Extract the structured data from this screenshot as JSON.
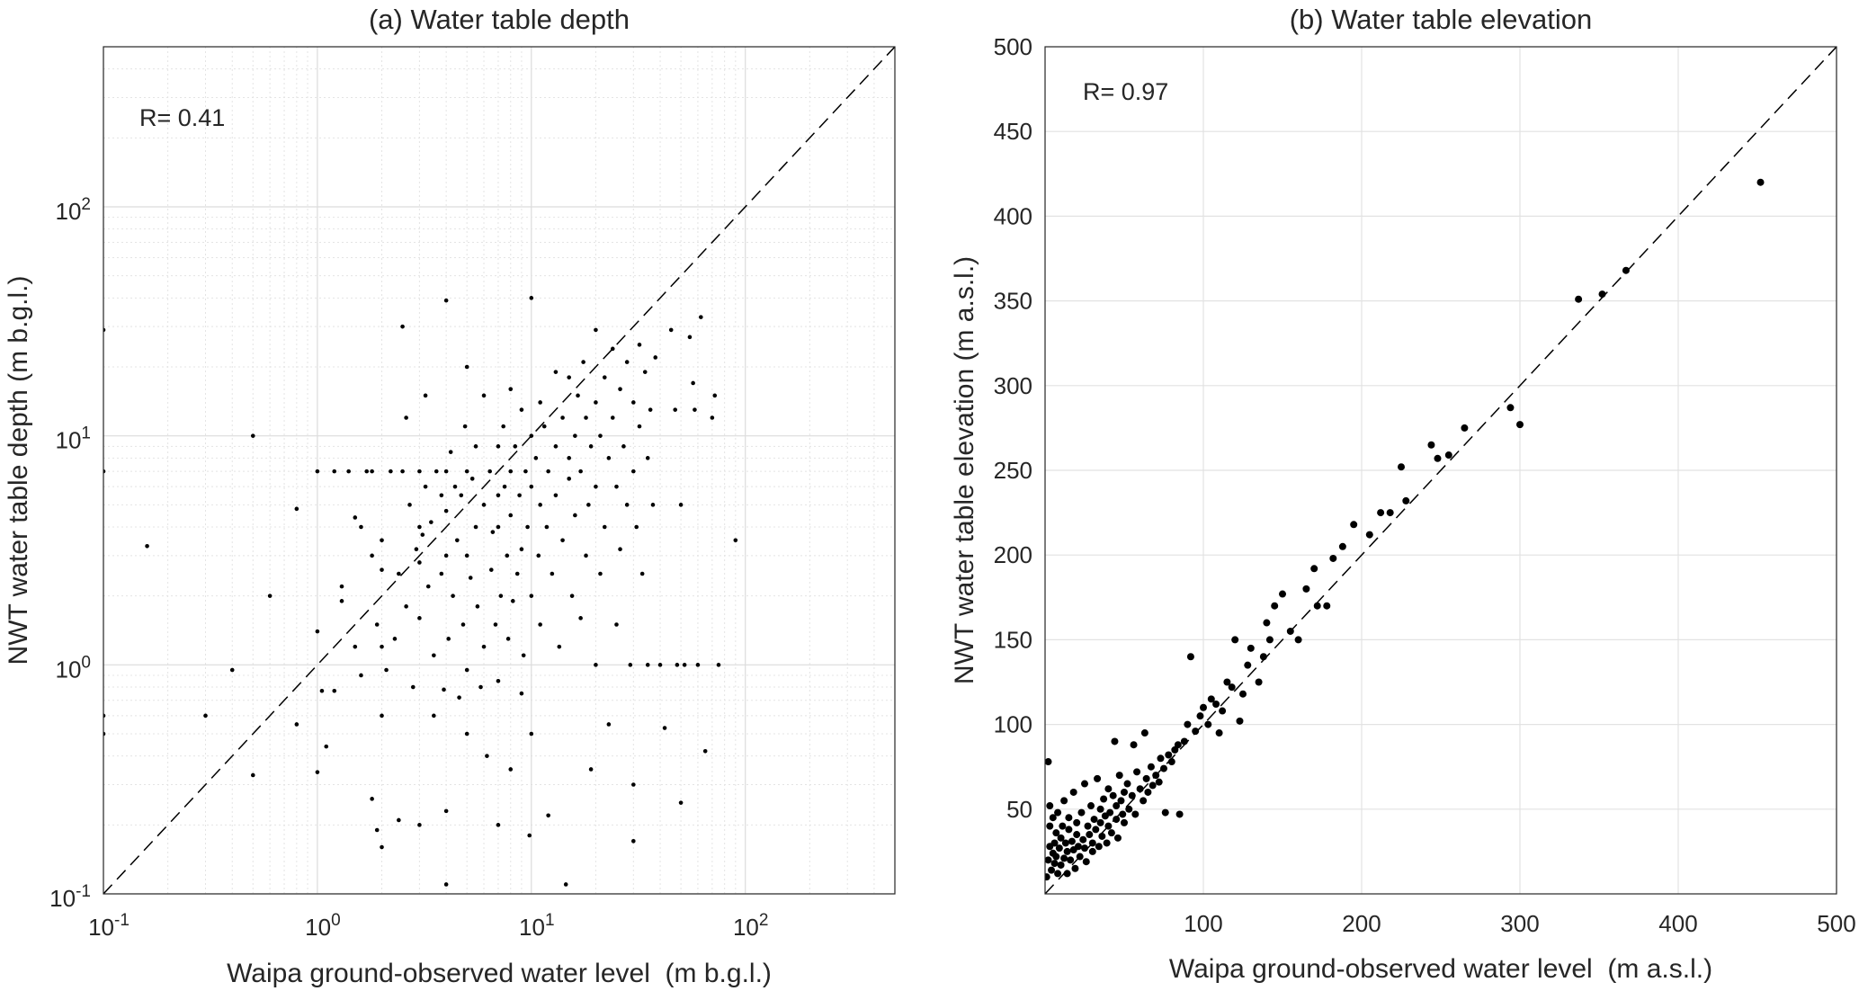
{
  "chart_data": [
    {
      "type": "scatter",
      "title": "(a) Water table depth",
      "xlabel": "Waipa ground-observed water level  (m b.g.l.)",
      "ylabel": "NWT water table depth (m b.g.l.)",
      "xscale": "log",
      "yscale": "log",
      "xlim": [
        0.1,
        500
      ],
      "ylim": [
        0.1,
        500
      ],
      "x_ticks": [
        {
          "base": "10",
          "exp": "-1"
        },
        {
          "base": "10",
          "exp": "0"
        },
        {
          "base": "10",
          "exp": "1"
        },
        {
          "base": "10",
          "exp": "2"
        }
      ],
      "y_ticks": [
        {
          "base": "10",
          "exp": "-1"
        },
        {
          "base": "10",
          "exp": "0"
        },
        {
          "base": "10",
          "exp": "1"
        },
        {
          "base": "10",
          "exp": "2"
        }
      ],
      "grid": "major and minor",
      "reference_line": "1:1 dashed",
      "annotation": "R= 0.41",
      "points": [
        [
          0.1,
          29
        ],
        [
          0.1,
          7
        ],
        [
          0.1,
          0.6
        ],
        [
          0.1,
          0.5
        ],
        [
          0.16,
          3.3
        ],
        [
          0.3,
          0.6
        ],
        [
          0.4,
          0.95
        ],
        [
          0.5,
          10
        ],
        [
          0.5,
          0.33
        ],
        [
          0.6,
          2
        ],
        [
          0.8,
          4.8
        ],
        [
          0.8,
          0.55
        ],
        [
          1,
          7
        ],
        [
          1,
          1.4
        ],
        [
          1,
          0.34
        ],
        [
          1.05,
          0.77
        ],
        [
          1.1,
          0.44
        ],
        [
          1.2,
          7
        ],
        [
          1.2,
          0.77
        ],
        [
          1.3,
          2.2
        ],
        [
          1.3,
          1.9
        ],
        [
          1.4,
          7
        ],
        [
          1.5,
          4.4
        ],
        [
          1.5,
          1.2
        ],
        [
          1.6,
          4
        ],
        [
          1.6,
          0.9
        ],
        [
          1.7,
          7
        ],
        [
          1.8,
          7
        ],
        [
          1.8,
          3
        ],
        [
          1.8,
          0.26
        ],
        [
          1.9,
          1.5
        ],
        [
          1.9,
          0.19
        ],
        [
          2,
          3.5
        ],
        [
          2,
          2.6
        ],
        [
          2,
          1.2
        ],
        [
          2,
          0.6
        ],
        [
          2,
          0.16
        ],
        [
          2.1,
          0.95
        ],
        [
          2.2,
          7
        ],
        [
          2.3,
          1.3
        ],
        [
          2.4,
          2.5
        ],
        [
          2.4,
          0.21
        ],
        [
          2.5,
          30
        ],
        [
          2.5,
          7
        ],
        [
          2.6,
          1.8
        ],
        [
          2.6,
          12
        ],
        [
          2.7,
          5
        ],
        [
          2.8,
          0.8
        ],
        [
          2.9,
          3.2
        ],
        [
          3,
          7
        ],
        [
          3,
          4
        ],
        [
          3,
          2.8
        ],
        [
          3,
          1.6
        ],
        [
          3,
          0.2
        ],
        [
          3.1,
          3.7
        ],
        [
          3.2,
          15
        ],
        [
          3.2,
          6
        ],
        [
          3.3,
          2.2
        ],
        [
          3.4,
          4.2
        ],
        [
          3.5,
          1.1
        ],
        [
          3.5,
          0.6
        ],
        [
          3.6,
          7
        ],
        [
          3.8,
          5.5
        ],
        [
          3.8,
          2.5
        ],
        [
          3.9,
          0.78
        ],
        [
          4,
          39
        ],
        [
          4,
          7
        ],
        [
          4,
          4.7
        ],
        [
          4,
          3
        ],
        [
          4,
          0.23
        ],
        [
          4,
          0.11
        ],
        [
          4.1,
          1.3
        ],
        [
          4.2,
          8.5
        ],
        [
          4.3,
          2
        ],
        [
          4.4,
          6
        ],
        [
          4.5,
          3.5
        ],
        [
          4.6,
          0.72
        ],
        [
          4.7,
          5.5
        ],
        [
          4.8,
          1.5
        ],
        [
          4.9,
          11
        ],
        [
          5,
          20
        ],
        [
          5,
          7
        ],
        [
          5,
          3
        ],
        [
          5,
          0.95
        ],
        [
          5,
          0.5
        ],
        [
          5.2,
          2.4
        ],
        [
          5.3,
          6.5
        ],
        [
          5.5,
          9
        ],
        [
          5.5,
          4
        ],
        [
          5.6,
          1.8
        ],
        [
          5.8,
          0.8
        ],
        [
          6,
          15
        ],
        [
          6,
          5
        ],
        [
          6,
          1.2
        ],
        [
          6.2,
          0.4
        ],
        [
          6.4,
          7
        ],
        [
          6.5,
          2.6
        ],
        [
          6.6,
          3.8
        ],
        [
          6.8,
          1.5
        ],
        [
          7,
          9
        ],
        [
          7,
          5.5
        ],
        [
          7,
          4
        ],
        [
          7,
          0.85
        ],
        [
          7,
          0.2
        ],
        [
          7.2,
          2
        ],
        [
          7.4,
          11
        ],
        [
          7.5,
          6
        ],
        [
          7.7,
          3
        ],
        [
          7.8,
          1.3
        ],
        [
          8,
          16
        ],
        [
          8,
          7
        ],
        [
          8,
          4.5
        ],
        [
          8,
          0.35
        ],
        [
          8.2,
          1.9
        ],
        [
          8.4,
          9
        ],
        [
          8.6,
          2.5
        ],
        [
          8.8,
          5.5
        ],
        [
          9,
          13
        ],
        [
          9,
          3.2
        ],
        [
          9,
          0.75
        ],
        [
          9.2,
          1.1
        ],
        [
          9.4,
          7
        ],
        [
          9.6,
          4
        ],
        [
          9.8,
          0.18
        ],
        [
          10,
          40
        ],
        [
          10,
          10
        ],
        [
          10,
          6
        ],
        [
          10,
          2
        ],
        [
          10,
          0.5
        ],
        [
          10.5,
          8
        ],
        [
          10.8,
          3
        ],
        [
          11,
          14
        ],
        [
          11,
          5
        ],
        [
          11,
          1.5
        ],
        [
          11.5,
          11
        ],
        [
          11.8,
          4
        ],
        [
          12,
          7
        ],
        [
          12,
          0.22
        ],
        [
          12.5,
          2.5
        ],
        [
          13,
          9
        ],
        [
          13,
          19
        ],
        [
          13,
          5.5
        ],
        [
          13.5,
          1.2
        ],
        [
          14,
          12
        ],
        [
          14,
          3.5
        ],
        [
          14.5,
          0.11
        ],
        [
          15,
          18
        ],
        [
          15,
          8
        ],
        [
          15,
          6.5
        ],
        [
          15.5,
          2
        ],
        [
          16,
          10
        ],
        [
          16,
          4.5
        ],
        [
          16.5,
          15
        ],
        [
          17,
          7
        ],
        [
          17,
          1.6
        ],
        [
          17.5,
          21
        ],
        [
          18,
          12
        ],
        [
          18,
          3
        ],
        [
          18.5,
          5
        ],
        [
          19,
          9
        ],
        [
          19,
          0.35
        ],
        [
          20,
          29
        ],
        [
          20,
          14
        ],
        [
          20,
          6
        ],
        [
          20,
          1
        ],
        [
          21,
          10
        ],
        [
          21,
          2.5
        ],
        [
          22,
          18
        ],
        [
          22,
          4
        ],
        [
          23,
          8
        ],
        [
          23,
          0.55
        ],
        [
          24,
          12
        ],
        [
          24,
          24
        ],
        [
          25,
          6
        ],
        [
          25,
          1.5
        ],
        [
          26,
          16
        ],
        [
          26,
          3.2
        ],
        [
          27,
          9
        ],
        [
          28,
          21
        ],
        [
          28,
          5
        ],
        [
          29,
          1
        ],
        [
          30,
          14
        ],
        [
          30,
          7
        ],
        [
          30,
          0.3
        ],
        [
          30,
          0.17
        ],
        [
          31,
          4
        ],
        [
          32,
          25
        ],
        [
          32,
          11
        ],
        [
          33,
          2.5
        ],
        [
          34,
          19
        ],
        [
          35,
          8
        ],
        [
          35,
          1
        ],
        [
          36,
          13
        ],
        [
          37,
          5
        ],
        [
          38,
          22
        ],
        [
          40,
          1
        ],
        [
          42,
          0.53
        ],
        [
          45,
          29
        ],
        [
          47,
          13
        ],
        [
          48,
          1
        ],
        [
          50,
          5
        ],
        [
          50,
          0.25
        ],
        [
          52,
          1
        ],
        [
          55,
          27
        ],
        [
          57,
          17
        ],
        [
          58,
          13
        ],
        [
          60,
          1
        ],
        [
          62,
          33
        ],
        [
          65,
          0.42
        ],
        [
          70,
          12
        ],
        [
          72,
          15
        ],
        [
          75,
          1
        ],
        [
          90,
          3.5
        ]
      ]
    },
    {
      "type": "scatter",
      "title": "(b) Water table elevation",
      "xlabel": "Waipa ground-observed water level  (m a.s.l.)",
      "ylabel": "NWT water table elevation (m a.s.l.)",
      "xlim": [
        0,
        500
      ],
      "ylim": [
        0,
        500
      ],
      "x_ticks": [
        "100",
        "200",
        "300",
        "400",
        "500"
      ],
      "y_ticks": [
        "50",
        "100",
        "150",
        "200",
        "250",
        "300",
        "350",
        "400",
        "450",
        "500"
      ],
      "grid": "on",
      "reference_line": "1:1 dashed",
      "annotation": "R= 0.97",
      "points": [
        [
          1,
          10
        ],
        [
          2,
          78
        ],
        [
          2,
          20
        ],
        [
          3,
          52
        ],
        [
          3,
          40
        ],
        [
          3,
          28
        ],
        [
          4,
          14
        ],
        [
          5,
          24
        ],
        [
          5,
          45
        ],
        [
          6,
          30
        ],
        [
          6,
          18
        ],
        [
          7,
          36
        ],
        [
          7,
          22
        ],
        [
          8,
          12
        ],
        [
          8,
          48
        ],
        [
          9,
          27
        ],
        [
          10,
          33
        ],
        [
          10,
          17
        ],
        [
          11,
          40
        ],
        [
          12,
          21
        ],
        [
          12,
          55
        ],
        [
          13,
          30
        ],
        [
          14,
          25
        ],
        [
          14,
          12
        ],
        [
          15,
          38
        ],
        [
          15,
          45
        ],
        [
          16,
          20
        ],
        [
          17,
          31
        ],
        [
          18,
          26
        ],
        [
          18,
          60
        ],
        [
          19,
          15
        ],
        [
          20,
          35
        ],
        [
          20,
          42
        ],
        [
          21,
          28
        ],
        [
          22,
          22
        ],
        [
          23,
          48
        ],
        [
          24,
          32
        ],
        [
          25,
          27
        ],
        [
          25,
          65
        ],
        [
          26,
          19
        ],
        [
          27,
          40
        ],
        [
          28,
          35
        ],
        [
          29,
          52
        ],
        [
          30,
          30
        ],
        [
          30,
          25
        ],
        [
          31,
          44
        ],
        [
          32,
          38
        ],
        [
          33,
          68
        ],
        [
          34,
          28
        ],
        [
          35,
          50
        ],
        [
          35,
          42
        ],
        [
          36,
          34
        ],
        [
          37,
          56
        ],
        [
          38,
          46
        ],
        [
          39,
          30
        ],
        [
          40,
          62
        ],
        [
          40,
          40
        ],
        [
          41,
          48
        ],
        [
          42,
          36
        ],
        [
          43,
          58
        ],
        [
          44,
          90
        ],
        [
          45,
          52
        ],
        [
          45,
          44
        ],
        [
          46,
          33
        ],
        [
          47,
          70
        ],
        [
          48,
          55
        ],
        [
          49,
          47
        ],
        [
          50,
          60
        ],
        [
          50,
          42
        ],
        [
          52,
          65
        ],
        [
          53,
          50
        ],
        [
          55,
          58
        ],
        [
          56,
          88
        ],
        [
          57,
          47
        ],
        [
          58,
          72
        ],
        [
          60,
          62
        ],
        [
          62,
          55
        ],
        [
          63,
          95
        ],
        [
          64,
          68
        ],
        [
          65,
          60
        ],
        [
          67,
          75
        ],
        [
          68,
          64
        ],
        [
          70,
          70
        ],
        [
          72,
          66
        ],
        [
          73,
          80
        ],
        [
          75,
          74
        ],
        [
          76,
          48
        ],
        [
          78,
          82
        ],
        [
          80,
          78
        ],
        [
          82,
          85
        ],
        [
          84,
          88
        ],
        [
          85,
          47
        ],
        [
          88,
          90
        ],
        [
          90,
          100
        ],
        [
          92,
          140
        ],
        [
          95,
          96
        ],
        [
          98,
          105
        ],
        [
          100,
          110
        ],
        [
          103,
          100
        ],
        [
          105,
          115
        ],
        [
          108,
          112
        ],
        [
          110,
          95
        ],
        [
          112,
          108
        ],
        [
          115,
          125
        ],
        [
          118,
          122
        ],
        [
          120,
          150
        ],
        [
          123,
          102
        ],
        [
          125,
          118
        ],
        [
          128,
          135
        ],
        [
          130,
          145
        ],
        [
          135,
          125
        ],
        [
          138,
          140
        ],
        [
          140,
          160
        ],
        [
          142,
          150
        ],
        [
          145,
          170
        ],
        [
          150,
          177
        ],
        [
          155,
          155
        ],
        [
          160,
          150
        ],
        [
          165,
          180
        ],
        [
          170,
          192
        ],
        [
          172,
          170
        ],
        [
          178,
          170
        ],
        [
          182,
          198
        ],
        [
          188,
          205
        ],
        [
          195,
          218
        ],
        [
          205,
          212
        ],
        [
          212,
          225
        ],
        [
          218,
          225
        ],
        [
          225,
          252
        ],
        [
          228,
          232
        ],
        [
          244,
          265
        ],
        [
          248,
          257
        ],
        [
          255,
          259
        ],
        [
          265,
          275
        ],
        [
          294,
          287
        ],
        [
          300,
          277
        ],
        [
          337,
          351
        ],
        [
          352,
          354
        ],
        [
          367,
          368
        ],
        [
          452,
          420
        ]
      ]
    }
  ]
}
